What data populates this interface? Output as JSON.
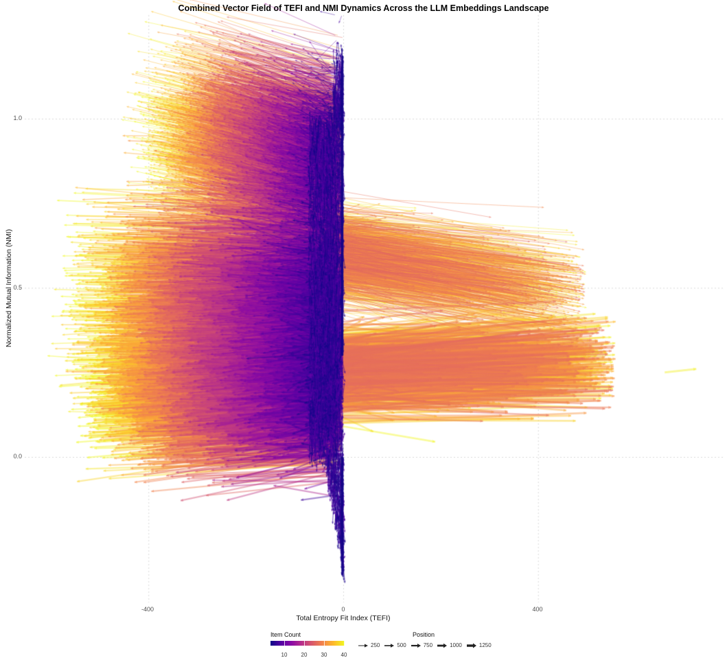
{
  "chart_data": {
    "type": "vector_field",
    "title": "Combined Vector Field of TEFI and NMI Dynamics Across the LLM Embeddings Landscape",
    "xlabel": "Total Entropy Fit Index (TEFI)",
    "ylabel": "Normalized Mutual Information (NMI)",
    "xlim": [
      -600,
      730
    ],
    "ylim": [
      -0.42,
      1.25
    ],
    "x_ticks": [
      -400,
      0,
      400
    ],
    "x_tick_labels": [
      "-400",
      "0",
      "400"
    ],
    "y_ticks": [
      0.0,
      0.5,
      1.0
    ],
    "y_tick_labels": [
      "0.0",
      "0.5",
      "1.0"
    ],
    "grid": "major dotted, light grey",
    "colorscale": "plasma",
    "legend_position": "bottom",
    "legends": {
      "color": {
        "title": "Item Count",
        "range": [
          3,
          40
        ],
        "breaks": [
          10,
          20,
          30,
          40
        ],
        "break_labels": [
          "10",
          "20",
          "30",
          "40"
        ]
      },
      "linewidth": {
        "title": "Position",
        "breaks": [
          250,
          500,
          750,
          1000,
          1250
        ],
        "break_labels": [
          "250",
          "500",
          "750",
          "1000",
          "1250"
        ]
      }
    },
    "clusters": [
      {
        "name": "upper-left fan",
        "tail_tefi_range": [
          -420,
          0
        ],
        "nmi_range": [
          0.55,
          1.22
        ],
        "direction": "up-left",
        "item_count_range": [
          5,
          40
        ],
        "position_approx": 250
      },
      {
        "name": "middle-left fan",
        "tail_tefi_range": [
          -590,
          0
        ],
        "nmi_range": [
          0.2,
          0.72
        ],
        "direction": "left",
        "item_count_range": [
          5,
          40
        ],
        "position_approx": 500
      },
      {
        "name": "lower-left fan",
        "tail_tefi_range": [
          -560,
          0
        ],
        "nmi_range": [
          0.03,
          0.45
        ],
        "direction": "left",
        "item_count_range": [
          5,
          40
        ],
        "position_approx": 1000
      },
      {
        "name": "upper-right spread",
        "tail_tefi_range": [
          0,
          520
        ],
        "nmi_range": [
          0.38,
          0.72
        ],
        "direction": "right-down",
        "item_count_range": [
          20,
          40
        ],
        "position_approx": 500
      },
      {
        "name": "lower-right spread",
        "tail_tefi_range": [
          0,
          725
        ],
        "nmi_range": [
          0.15,
          0.36
        ],
        "direction": "right",
        "item_count_range": [
          20,
          40
        ],
        "position_approx": 1250
      },
      {
        "name": "central spine",
        "tail_tefi_range": [
          -60,
          5
        ],
        "nmi_range": [
          -0.38,
          1.22
        ],
        "direction": "vertical",
        "item_count_range": [
          3,
          12
        ],
        "position_approx": 750
      }
    ],
    "approx_extremes": {
      "max_tefi": 725,
      "max_tefi_nmi": 0.26,
      "min_tefi": -590,
      "min_tefi_nmi": 0.32,
      "max_nmi": 1.22,
      "min_nmi": -0.38
    }
  },
  "text": {
    "title": "Combined Vector Field of TEFI and NMI Dynamics Across the LLM Embeddings Landscape",
    "xlabel": "Total Entropy Fit Index (TEFI)",
    "ylabel": "Normalized Mutual Information (NMI)",
    "legend_color_title": "Item Count",
    "legend_pos_title": "Position",
    "xt0": "-400",
    "xt1": "0",
    "xt2": "400",
    "yt0": "0.0",
    "yt1": "0.5",
    "yt2": "1.0",
    "c10": "10",
    "c20": "20",
    "c30": "30",
    "c40": "40",
    "p250": "250",
    "p500": "500",
    "p750": "750",
    "p1000": "1000",
    "p1250": "1250"
  }
}
